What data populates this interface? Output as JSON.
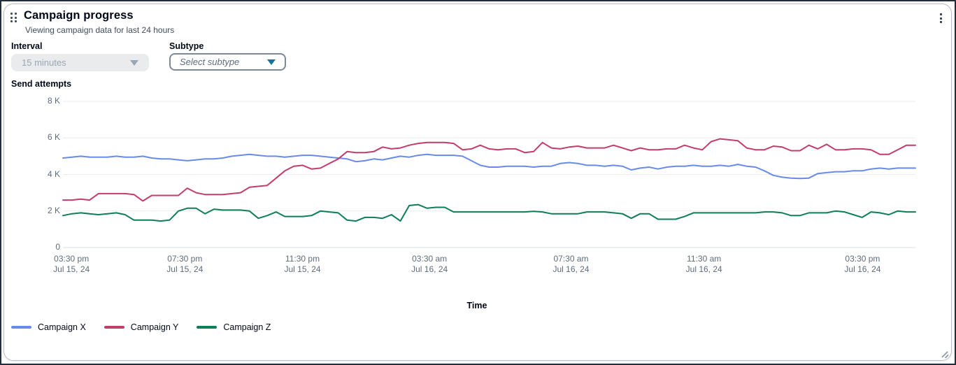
{
  "card": {
    "title": "Campaign progress",
    "subtitle": "Viewing campaign data for last 24 hours",
    "icons": {
      "drag_handle": "drag-dots-grid",
      "menu": "kebab-vertical-dots",
      "resize": "diagonal-resize-lines"
    }
  },
  "controls": {
    "interval": {
      "label": "Interval",
      "value": "15 minutes",
      "state": "disabled"
    },
    "subtype": {
      "label": "Subtype",
      "placeholder": "Select subtype",
      "state": "enabled"
    }
  },
  "chart_data": {
    "type": "line",
    "title": "",
    "ylabel": "Send attempts",
    "xlabel": "Time",
    "ylim": [
      0,
      8000
    ],
    "grid": "horizontal-only",
    "legend_position": "bottom-left",
    "x_interval": "15 minutes",
    "x_range": "03:30 pm Jul 15, 24 to 03:30 pm Jul 16, 24",
    "y_ticks": [
      {
        "label": "8 K",
        "value": 8000
      },
      {
        "label": "6 K",
        "value": 6000
      },
      {
        "label": "4 K",
        "value": 4000
      },
      {
        "label": "2 K",
        "value": 2000
      },
      {
        "label": "0",
        "value": 0
      }
    ],
    "x_ticks": [
      {
        "time": "03:30 pm",
        "date": "Jul 15, 24"
      },
      {
        "time": "07:30 pm",
        "date": "Jul 15, 24"
      },
      {
        "time": "11:30 pm",
        "date": "Jul 15, 24"
      },
      {
        "time": "03:30 am",
        "date": "Jul 16, 24"
      },
      {
        "time": "07:30 am",
        "date": "Jul 16, 24"
      },
      {
        "time": "11:30 am",
        "date": "Jul 16, 24"
      },
      {
        "time": "03:30 pm",
        "date": "Jul 16, 24"
      }
    ],
    "series": [
      {
        "name": "Campaign X",
        "color": "#688ae8",
        "values": [
          4900,
          4950,
          5000,
          4950,
          4950,
          4950,
          5000,
          4950,
          4950,
          5000,
          4900,
          4850,
          4850,
          4800,
          4750,
          4800,
          4850,
          4850,
          4900,
          5000,
          5050,
          5100,
          5050,
          5000,
          5000,
          4950,
          5000,
          5050,
          5050,
          5000,
          4950,
          4900,
          4850,
          4700,
          4750,
          4850,
          4800,
          4900,
          5000,
          4950,
          5050,
          5100,
          5050,
          5050,
          5050,
          5000,
          4750,
          4500,
          4400,
          4400,
          4450,
          4450,
          4450,
          4400,
          4450,
          4450,
          4600,
          4650,
          4600,
          4500,
          4500,
          4450,
          4500,
          4450,
          4250,
          4350,
          4400,
          4300,
          4400,
          4450,
          4450,
          4500,
          4450,
          4450,
          4500,
          4450,
          4550,
          4450,
          4400,
          4200,
          3950,
          3850,
          3800,
          3780,
          3800,
          4050,
          4100,
          4150,
          4150,
          4200,
          4200,
          4300,
          4350,
          4300,
          4350,
          4350,
          4350
        ]
      },
      {
        "name": "Campaign Y",
        "color": "#c33d69",
        "values": [
          2600,
          2600,
          2650,
          2600,
          2950,
          2950,
          2950,
          2950,
          2900,
          2550,
          2850,
          2850,
          2850,
          2850,
          3250,
          3000,
          2900,
          2900,
          2900,
          2950,
          3000,
          3300,
          3350,
          3400,
          3800,
          4200,
          4450,
          4500,
          4300,
          4350,
          4600,
          4850,
          5250,
          5200,
          5200,
          5250,
          5500,
          5400,
          5450,
          5600,
          5700,
          5750,
          5750,
          5750,
          5700,
          5350,
          5400,
          5600,
          5400,
          5350,
          5400,
          5400,
          5200,
          5250,
          5750,
          5450,
          5400,
          5500,
          5550,
          5450,
          5450,
          5450,
          5600,
          5450,
          5300,
          5450,
          5350,
          5350,
          5400,
          5400,
          5600,
          5450,
          5350,
          5800,
          5950,
          5900,
          5850,
          5450,
          5350,
          5350,
          5550,
          5500,
          5300,
          5300,
          5600,
          5400,
          5650,
          5350,
          5350,
          5400,
          5400,
          5350,
          5100,
          5100,
          5350,
          5600,
          5600
        ]
      },
      {
        "name": "Campaign Z",
        "color": "#0e7e57",
        "values": [
          1750,
          1850,
          1900,
          1850,
          1800,
          1850,
          1900,
          1800,
          1500,
          1500,
          1500,
          1450,
          1500,
          2000,
          2150,
          2150,
          1850,
          2100,
          2050,
          2050,
          2050,
          2000,
          1600,
          1750,
          1950,
          1700,
          1700,
          1700,
          1750,
          2000,
          1950,
          1900,
          1500,
          1450,
          1650,
          1650,
          1600,
          1800,
          1450,
          2300,
          2350,
          2150,
          2200,
          2200,
          1950,
          1950,
          1950,
          1950,
          1950,
          1950,
          1950,
          1950,
          1950,
          1980,
          1950,
          1850,
          1850,
          1850,
          1850,
          1950,
          1950,
          1950,
          1900,
          1850,
          1600,
          1850,
          1850,
          1550,
          1550,
          1550,
          1700,
          1900,
          1900,
          1900,
          1900,
          1900,
          1900,
          1900,
          1900,
          1950,
          1950,
          1900,
          1750,
          1750,
          1900,
          1900,
          1900,
          2000,
          1950,
          1800,
          1650,
          1950,
          1900,
          1800,
          2000,
          1950,
          1950
        ]
      }
    ]
  },
  "colors": {
    "title_text": "#000716",
    "secondary_text": "#414d5c",
    "axis_text": "#5f6b7a",
    "gridline": "#e9ebed",
    "card_border": "#b6bec9",
    "disabled_bg": "#e9ebed",
    "disabled_text": "#9aa6b2",
    "select_border": "#7d8998",
    "caret_active": "#107897",
    "series_blue": "#688ae8",
    "series_red": "#c33d69",
    "series_green": "#0e7e57"
  }
}
